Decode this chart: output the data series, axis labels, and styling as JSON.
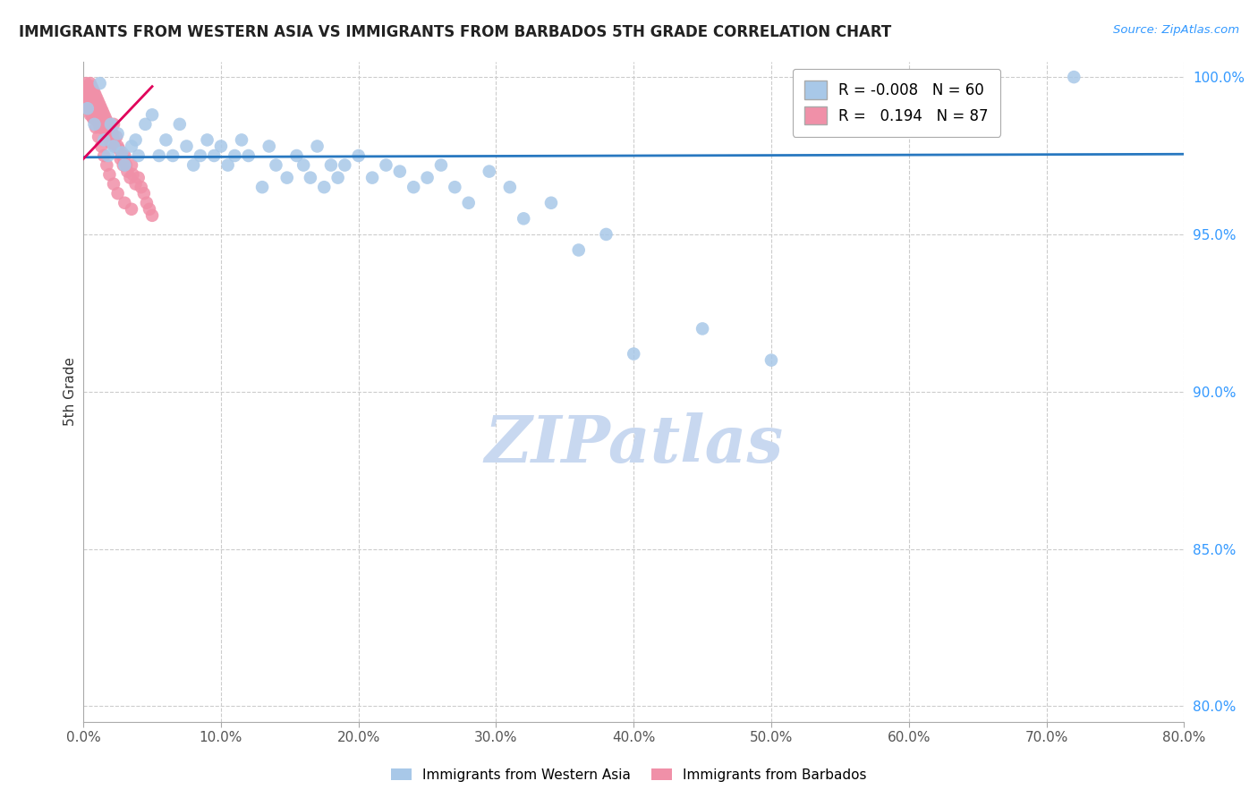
{
  "title": "IMMIGRANTS FROM WESTERN ASIA VS IMMIGRANTS FROM BARBADOS 5TH GRADE CORRELATION CHART",
  "source": "Source: ZipAtlas.com",
  "ylabel": "5th Grade",
  "xlim": [
    0.0,
    0.8
  ],
  "ylim": [
    0.795,
    1.005
  ],
  "xtick_labels": [
    "0.0%",
    "10.0%",
    "20.0%",
    "30.0%",
    "40.0%",
    "50.0%",
    "60.0%",
    "70.0%",
    "80.0%"
  ],
  "xtick_values": [
    0.0,
    0.1,
    0.2,
    0.3,
    0.4,
    0.5,
    0.6,
    0.7,
    0.8
  ],
  "ytick_labels": [
    "80.0%",
    "85.0%",
    "90.0%",
    "95.0%",
    "100.0%"
  ],
  "ytick_values": [
    0.8,
    0.85,
    0.9,
    0.95,
    1.0
  ],
  "legend_r_blue": "-0.008",
  "legend_n_blue": "60",
  "legend_r_pink": "0.194",
  "legend_n_pink": "87",
  "blue_color": "#a8c8e8",
  "pink_color": "#f090a8",
  "trendline_blue_color": "#2878c0",
  "trendline_pink_color": "#e0005a",
  "grid_color": "#cccccc",
  "watermark_color": "#c8d8f0",
  "blue_trendline_x": [
    0.0,
    0.8
  ],
  "blue_trendline_y": [
    0.9745,
    0.9755
  ],
  "pink_trendline_x": [
    0.0,
    0.05
  ],
  "pink_trendline_y": [
    0.974,
    0.997
  ],
  "blue_scatter_x": [
    0.003,
    0.008,
    0.012,
    0.015,
    0.018,
    0.02,
    0.022,
    0.025,
    0.028,
    0.03,
    0.035,
    0.038,
    0.04,
    0.045,
    0.05,
    0.055,
    0.06,
    0.065,
    0.07,
    0.075,
    0.08,
    0.085,
    0.09,
    0.095,
    0.1,
    0.105,
    0.11,
    0.115,
    0.12,
    0.13,
    0.135,
    0.14,
    0.148,
    0.155,
    0.16,
    0.165,
    0.17,
    0.175,
    0.18,
    0.185,
    0.19,
    0.2,
    0.21,
    0.22,
    0.23,
    0.24,
    0.25,
    0.26,
    0.27,
    0.28,
    0.295,
    0.31,
    0.32,
    0.34,
    0.36,
    0.38,
    0.4,
    0.45,
    0.5,
    0.72
  ],
  "blue_scatter_y": [
    0.99,
    0.985,
    0.998,
    0.98,
    0.975,
    0.985,
    0.978,
    0.982,
    0.976,
    0.972,
    0.978,
    0.98,
    0.975,
    0.985,
    0.988,
    0.975,
    0.98,
    0.975,
    0.985,
    0.978,
    0.972,
    0.975,
    0.98,
    0.975,
    0.978,
    0.972,
    0.975,
    0.98,
    0.975,
    0.965,
    0.978,
    0.972,
    0.968,
    0.975,
    0.972,
    0.968,
    0.978,
    0.965,
    0.972,
    0.968,
    0.972,
    0.975,
    0.968,
    0.972,
    0.97,
    0.965,
    0.968,
    0.972,
    0.965,
    0.96,
    0.97,
    0.965,
    0.955,
    0.96,
    0.945,
    0.95,
    0.912,
    0.92,
    0.91,
    1.0
  ],
  "pink_scatter_x": [
    0.001,
    0.002,
    0.002,
    0.003,
    0.003,
    0.003,
    0.004,
    0.004,
    0.004,
    0.005,
    0.005,
    0.005,
    0.005,
    0.006,
    0.006,
    0.006,
    0.006,
    0.007,
    0.007,
    0.007,
    0.007,
    0.008,
    0.008,
    0.008,
    0.009,
    0.009,
    0.009,
    0.01,
    0.01,
    0.01,
    0.011,
    0.011,
    0.012,
    0.012,
    0.012,
    0.013,
    0.013,
    0.014,
    0.014,
    0.015,
    0.015,
    0.016,
    0.016,
    0.017,
    0.017,
    0.018,
    0.018,
    0.019,
    0.019,
    0.02,
    0.02,
    0.021,
    0.022,
    0.022,
    0.023,
    0.024,
    0.025,
    0.026,
    0.027,
    0.028,
    0.029,
    0.03,
    0.031,
    0.032,
    0.034,
    0.035,
    0.036,
    0.038,
    0.04,
    0.042,
    0.044,
    0.046,
    0.048,
    0.05,
    0.003,
    0.005,
    0.007,
    0.009,
    0.011,
    0.013,
    0.015,
    0.017,
    0.019,
    0.022,
    0.025,
    0.03,
    0.035
  ],
  "pink_scatter_y": [
    0.995,
    0.998,
    0.993,
    0.997,
    0.995,
    0.992,
    0.996,
    0.993,
    0.99,
    0.998,
    0.995,
    0.992,
    0.988,
    0.997,
    0.994,
    0.991,
    0.988,
    0.996,
    0.993,
    0.99,
    0.987,
    0.995,
    0.992,
    0.988,
    0.994,
    0.991,
    0.987,
    0.993,
    0.99,
    0.986,
    0.992,
    0.988,
    0.991,
    0.988,
    0.984,
    0.99,
    0.986,
    0.989,
    0.985,
    0.988,
    0.984,
    0.987,
    0.983,
    0.986,
    0.982,
    0.985,
    0.981,
    0.984,
    0.98,
    0.983,
    0.979,
    0.982,
    0.985,
    0.98,
    0.978,
    0.981,
    0.978,
    0.977,
    0.974,
    0.975,
    0.972,
    0.975,
    0.972,
    0.97,
    0.968,
    0.972,
    0.969,
    0.966,
    0.968,
    0.965,
    0.963,
    0.96,
    0.958,
    0.956,
    0.993,
    0.99,
    0.987,
    0.984,
    0.981,
    0.978,
    0.975,
    0.972,
    0.969,
    0.966,
    0.963,
    0.96,
    0.958
  ]
}
